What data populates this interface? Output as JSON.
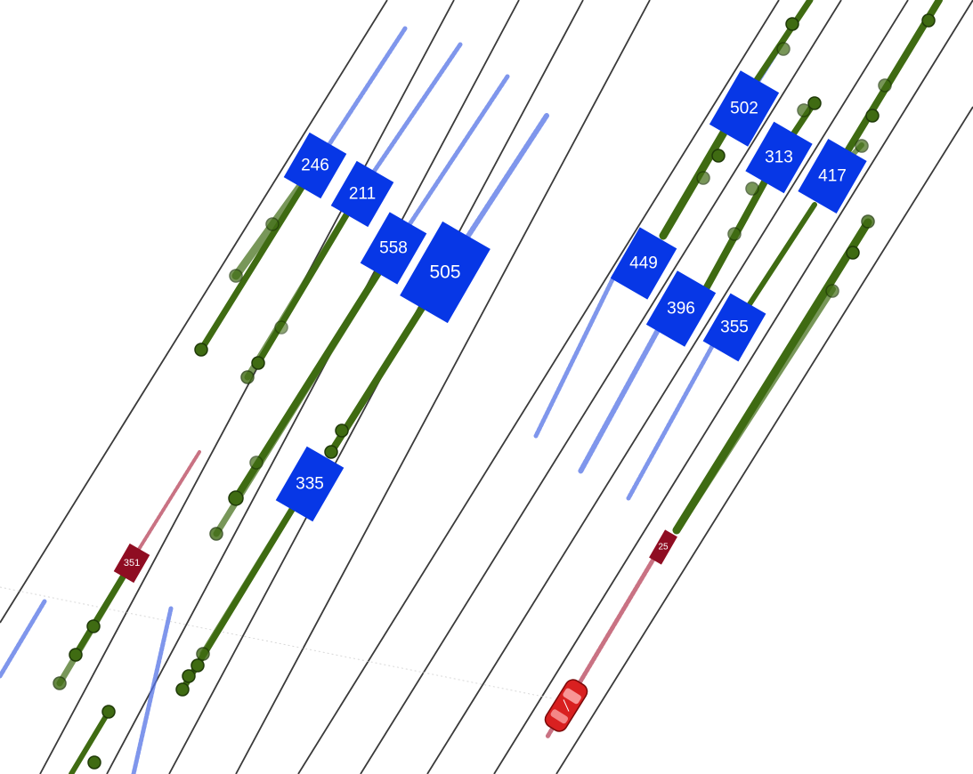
{
  "colors": {
    "lane_line": "#3a3a3a",
    "vehicle_blue": "#0737e6",
    "vehicle_red": "#8f0d22",
    "trajectory_green": "#3f6b12",
    "trail_blue": "#5574e6",
    "trail_red": "#b8445a",
    "ego_red": "#d92020"
  },
  "vehicles": [
    {
      "id": "246",
      "label": "246"
    },
    {
      "id": "211",
      "label": "211"
    },
    {
      "id": "558",
      "label": "558"
    },
    {
      "id": "505",
      "label": "505"
    },
    {
      "id": "335",
      "label": "335"
    },
    {
      "id": "502",
      "label": "502"
    },
    {
      "id": "313",
      "label": "313"
    },
    {
      "id": "417",
      "label": "417"
    },
    {
      "id": "449",
      "label": "449"
    },
    {
      "id": "396",
      "label": "396"
    },
    {
      "id": "355",
      "label": "355"
    },
    {
      "id": "351",
      "label": "351"
    },
    {
      "id": "25x",
      "label": "25"
    }
  ],
  "icons": {
    "ego": "car-icon"
  }
}
